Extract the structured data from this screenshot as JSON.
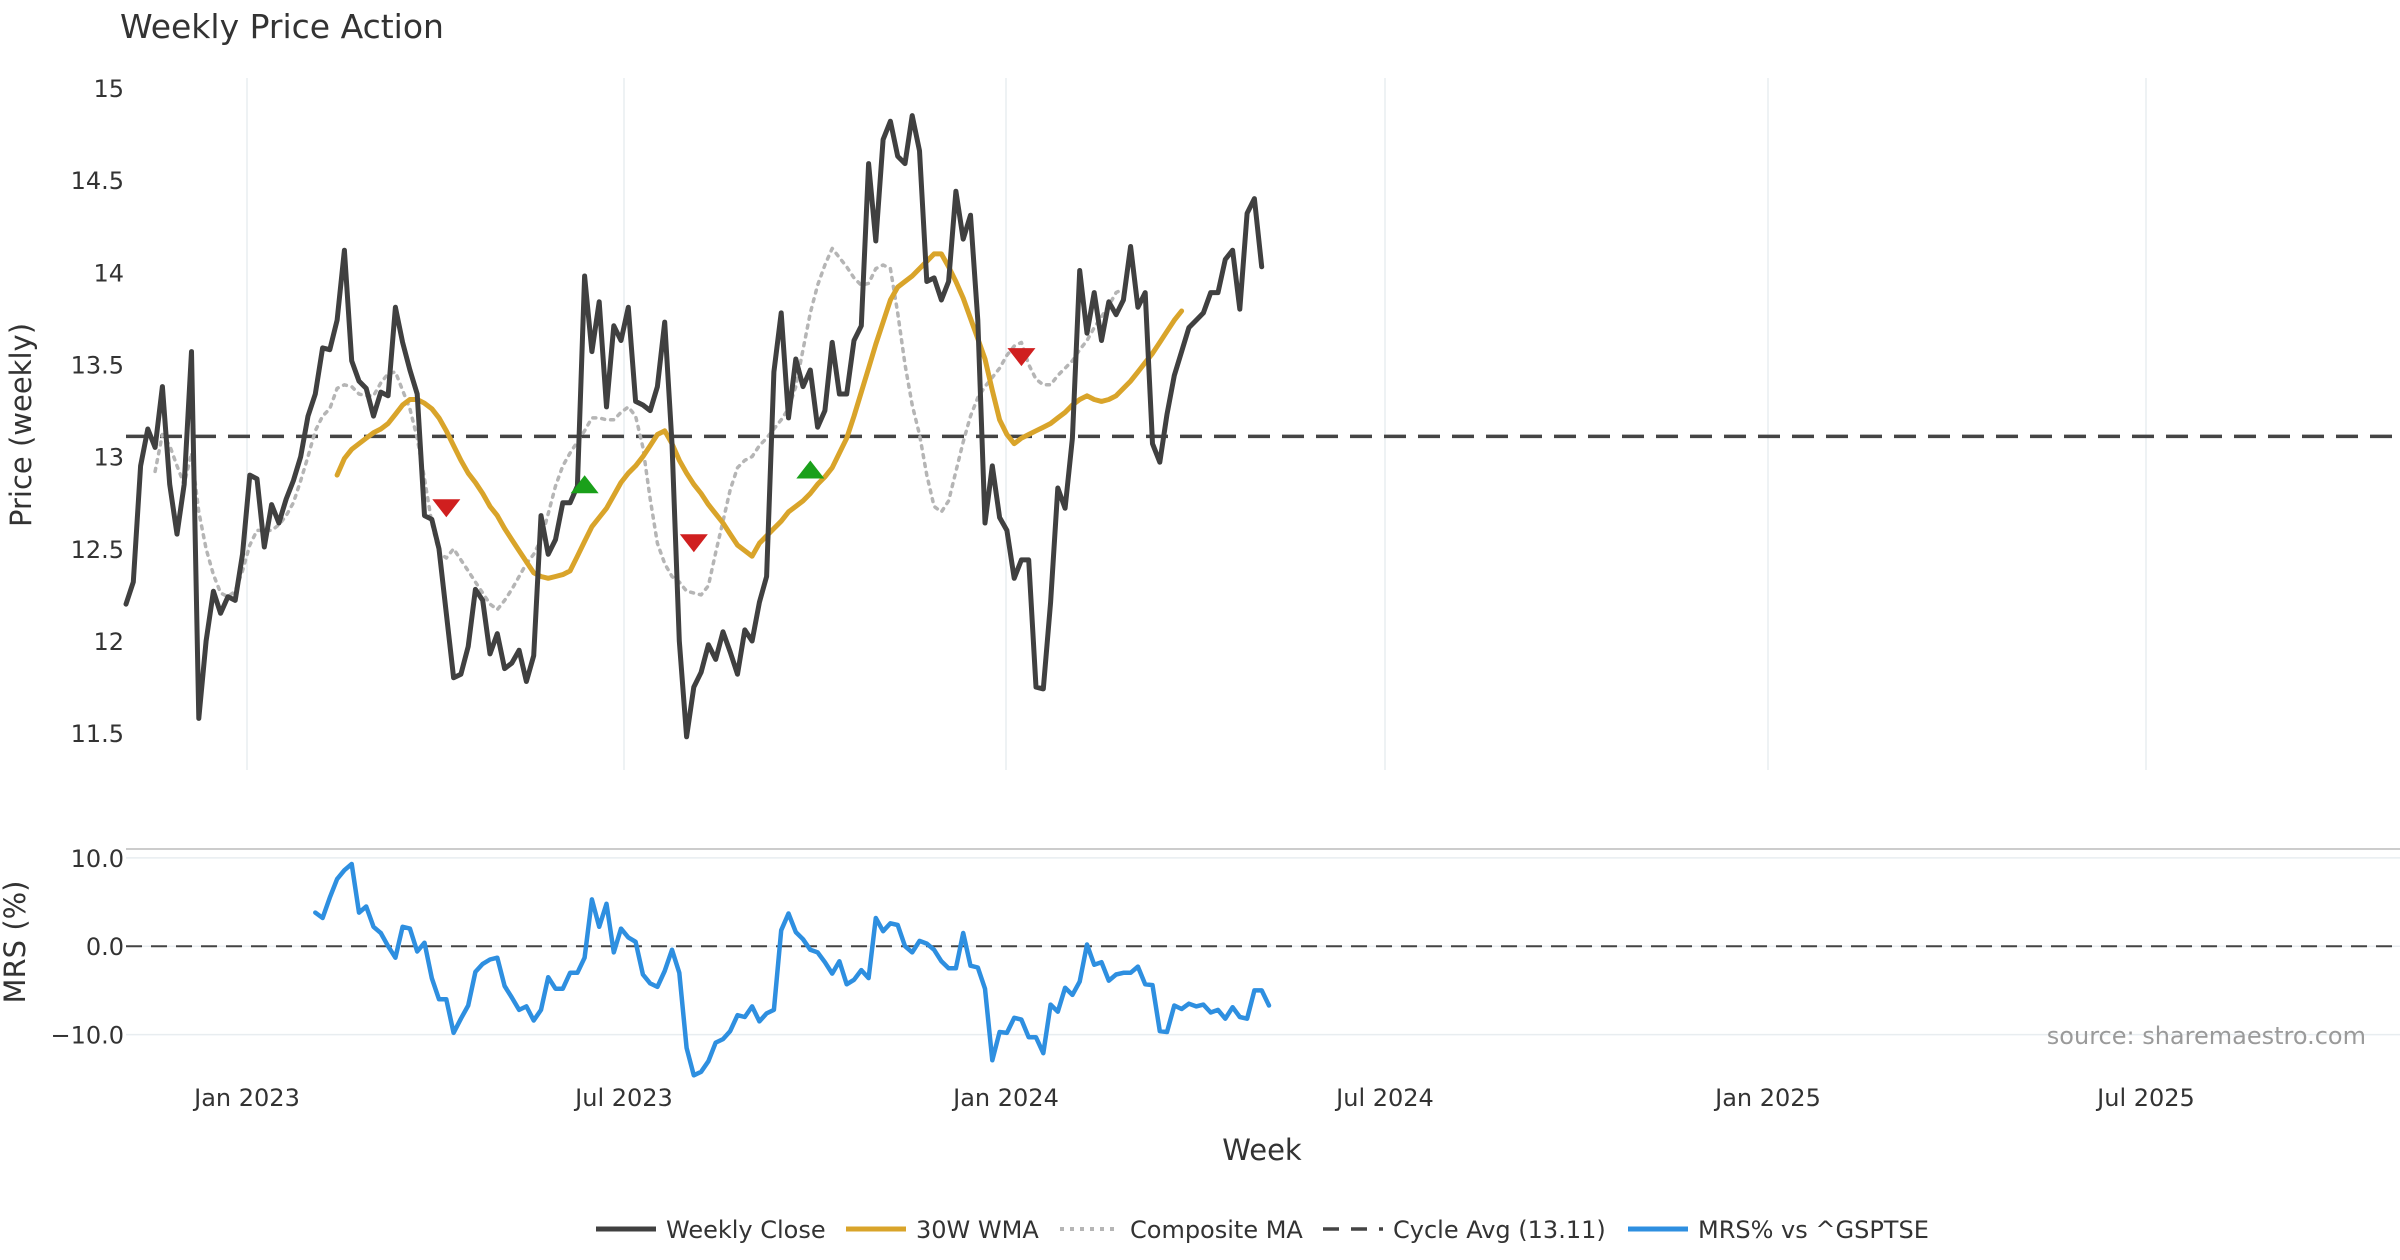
{
  "chart_data": {
    "type": "line",
    "title": "Weekly Price Action",
    "xlabel": "Week",
    "x_tick_labels": [
      "Jan 2023",
      "Jul 2023",
      "Jan 2024",
      "Jul 2024",
      "Jan 2025",
      "Jul 2025"
    ],
    "panels": [
      {
        "id": "price",
        "ylabel": "Price (weekly)",
        "ylim": [
          11.3,
          15.0
        ],
        "y_ticks": [
          11.5,
          12,
          12.5,
          13,
          13.5,
          14,
          14.5,
          15
        ],
        "y_tick_labels": [
          "11.5",
          "12",
          "12.5",
          "13",
          "13.5",
          "14",
          "14.5",
          "15"
        ],
        "grid": "x",
        "reference_line": {
          "name": "Cycle Avg (13.11)",
          "value": 13.11
        },
        "series": [
          {
            "name": "Weekly Close",
            "color": "#404040",
            "style": "solid",
            "start_week": 0,
            "values": [
              12.2,
              12.32,
              12.95,
              13.15,
              13.05,
              13.38,
              12.85,
              12.58,
              12.85,
              13.57,
              11.58,
              12.0,
              12.27,
              12.15,
              12.24,
              12.22,
              12.47,
              12.9,
              12.88,
              12.51,
              12.74,
              12.64,
              12.77,
              12.87,
              13.0,
              13.22,
              13.34,
              13.59,
              13.58,
              13.74,
              14.12,
              13.52,
              13.41,
              13.37,
              13.22,
              13.35,
              13.33,
              13.81,
              13.62,
              13.47,
              13.34,
              12.68,
              12.66,
              12.5,
              12.15,
              11.8,
              11.82,
              11.97,
              12.28,
              12.22,
              11.93,
              12.04,
              11.85,
              11.88,
              11.95,
              11.78,
              11.92,
              12.68,
              12.47,
              12.55,
              12.75,
              12.75,
              12.84,
              13.98,
              13.57,
              13.84,
              13.27,
              13.71,
              13.63,
              13.81,
              13.3,
              13.28,
              13.25,
              13.38,
              13.73,
              13.07,
              12.0,
              11.48,
              11.75,
              11.83,
              11.98,
              11.9,
              12.05,
              11.94,
              11.82,
              12.06,
              12.0,
              12.21,
              12.35,
              13.46,
              13.78,
              13.21,
              13.53,
              13.38,
              13.47,
              13.16,
              13.25,
              13.62,
              13.34,
              13.34,
              13.63,
              13.71,
              14.59,
              14.17,
              14.72,
              14.82,
              14.63,
              14.59,
              14.85,
              14.66,
              13.95,
              13.97,
              13.85,
              13.95,
              14.44,
              14.18,
              14.31,
              13.74,
              12.64,
              12.95,
              12.67,
              12.6,
              12.34,
              12.44,
              12.44,
              11.75,
              11.74,
              12.21,
              12.83,
              12.72,
              13.1,
              14.01,
              13.67,
              13.89,
              13.63,
              13.84,
              13.77,
              13.85,
              14.14,
              13.81,
              13.89,
              13.07,
              12.97,
              13.23,
              13.44,
              13.57,
              13.7,
              13.74,
              13.78,
              13.89,
              13.89,
              14.07,
              14.12,
              13.8,
              14.32,
              14.4,
              14.03
            ]
          },
          {
            "name": "30W WMA",
            "color": "#d9a42a",
            "style": "solid",
            "start_week": 29,
            "values": [
              12.9,
              12.99,
              13.04,
              13.07,
              13.1,
              13.13,
              13.15,
              13.18,
              13.23,
              13.28,
              13.31,
              13.31,
              13.29,
              13.26,
              13.21,
              13.14,
              13.06,
              12.98,
              12.91,
              12.86,
              12.8,
              12.73,
              12.68,
              12.61,
              12.55,
              12.49,
              12.43,
              12.37,
              12.35,
              12.34,
              12.35,
              12.36,
              12.38,
              12.46,
              12.54,
              12.62,
              12.67,
              12.72,
              12.79,
              12.86,
              12.91,
              12.95,
              13.0,
              13.06,
              13.12,
              13.14,
              13.07,
              12.98,
              12.91,
              12.85,
              12.8,
              12.74,
              12.69,
              12.64,
              12.58,
              12.52,
              12.49,
              12.46,
              12.53,
              12.57,
              12.61,
              12.65,
              12.7,
              12.73,
              12.76,
              12.8,
              12.85,
              12.89,
              12.94,
              13.02,
              13.1,
              13.22,
              13.35,
              13.48,
              13.61,
              13.73,
              13.85,
              13.92,
              13.95,
              13.98,
              14.02,
              14.06,
              14.1,
              14.1,
              14.03,
              13.95,
              13.86,
              13.75,
              13.64,
              13.53,
              13.36,
              13.2,
              13.12,
              13.07,
              13.1,
              13.12,
              13.14,
              13.16,
              13.18,
              13.21,
              13.24,
              13.28,
              13.31,
              13.33,
              13.31,
              13.3,
              13.31,
              13.33,
              13.37,
              13.41,
              13.46,
              13.51,
              13.56,
              13.62,
              13.68,
              13.74,
              13.79
            ]
          },
          {
            "name": "Composite MA",
            "color": "#b5b5b5",
            "style": "dotted",
            "start_week": 4,
            "values": [
              12.92,
              13.12,
              13.06,
              12.95,
              12.85,
              13.02,
              12.7,
              12.5,
              12.36,
              12.26,
              12.24,
              12.27,
              12.38,
              12.52,
              12.6,
              12.6,
              12.6,
              12.63,
              12.68,
              12.75,
              12.87,
              13.0,
              13.14,
              13.22,
              13.26,
              13.37,
              13.39,
              13.38,
              13.34,
              13.33,
              13.33,
              13.4,
              13.45,
              13.46,
              13.36,
              13.26,
              13.1,
              12.88,
              12.64,
              12.48,
              12.45,
              12.5,
              12.44,
              12.38,
              12.32,
              12.26,
              12.2,
              12.17,
              12.22,
              12.28,
              12.35,
              12.42,
              12.47,
              12.55,
              12.69,
              12.84,
              12.95,
              13.02,
              13.08,
              13.14,
              13.21,
              13.21,
              13.2,
              13.2,
              13.24,
              13.27,
              13.22,
              13.05,
              12.77,
              12.53,
              12.42,
              12.35,
              12.32,
              12.27,
              12.26,
              12.25,
              12.3,
              12.48,
              12.65,
              12.82,
              12.94,
              12.98,
              13.0,
              13.06,
              13.1,
              13.15,
              13.2,
              13.26,
              13.38,
              13.58,
              13.78,
              13.93,
              14.04,
              14.13,
              14.08,
              14.03,
              13.97,
              13.93,
              13.94,
              14.02,
              14.04,
              14.02,
              13.78,
              13.5,
              13.28,
              13.12,
              12.9,
              12.73,
              12.7,
              12.76,
              12.92,
              13.08,
              13.22,
              13.32,
              13.38,
              13.43,
              13.48,
              13.55,
              13.6,
              13.62,
              13.5,
              13.42,
              13.39,
              13.39,
              13.44,
              13.48,
              13.52,
              13.58,
              13.63,
              13.7,
              13.76,
              13.82,
              13.89,
              13.91
            ]
          }
        ],
        "signals": [
          {
            "type": "sell",
            "week": 44,
            "value": 12.72
          },
          {
            "type": "buy",
            "week": 63,
            "value": 12.85
          },
          {
            "type": "sell",
            "week": 78,
            "value": 12.53
          },
          {
            "type": "buy",
            "week": 94,
            "value": 12.93
          },
          {
            "type": "sell",
            "week": 123,
            "value": 13.54
          }
        ]
      },
      {
        "id": "mrs",
        "ylabel": "MRS (%)",
        "ylim": [
          -14.0,
          11.0
        ],
        "y_ticks": [
          10,
          0,
          -10
        ],
        "y_tick_labels": [
          "10.0",
          "0.0",
          "−10.0"
        ],
        "grid": "y",
        "reference_line": {
          "value": 0
        },
        "series": [
          {
            "name": "MRS% vs ^GSPTSE",
            "color": "#2e8fe0",
            "style": "solid",
            "start_week": 26,
            "values": [
              3.8,
              3.2,
              5.5,
              7.6,
              8.6,
              9.3,
              3.8,
              4.5,
              2.2,
              1.5,
              0.0,
              -1.3,
              2.2,
              2.0,
              -0.6,
              0.4,
              -3.6,
              -6.0,
              -6.0,
              -9.8,
              -8.2,
              -6.7,
              -2.9,
              -2.0,
              -1.5,
              -1.3,
              -4.5,
              -5.8,
              -7.2,
              -6.8,
              -8.4,
              -7.2,
              -3.5,
              -4.8,
              -4.8,
              -3.0,
              -3.0,
              -1.3,
              5.3,
              2.2,
              4.8,
              -0.7,
              2.0,
              1.0,
              0.5,
              -3.2,
              -4.2,
              -4.6,
              -2.8,
              -0.4,
              -3.0,
              -11.5,
              -14.6,
              -14.2,
              -13.0,
              -10.9,
              -10.5,
              -9.6,
              -7.8,
              -8.0,
              -6.8,
              -8.5,
              -7.6,
              -7.2,
              1.8,
              3.7,
              1.6,
              0.8,
              -0.4,
              -0.7,
              -1.8,
              -3.1,
              -1.7,
              -4.3,
              -3.8,
              -2.7,
              -3.6,
              3.2,
              1.7,
              2.6,
              2.4,
              0.0,
              -0.7,
              0.6,
              0.3,
              -0.4,
              -1.7,
              -2.5,
              -2.5,
              1.5,
              -2.2,
              -2.4,
              -4.8,
              -12.9,
              -9.7,
              -9.8,
              -8.1,
              -8.3,
              -10.3,
              -10.3,
              -12.1,
              -6.6,
              -7.4,
              -4.7,
              -5.5,
              -4.0,
              0.2,
              -2.1,
              -1.8,
              -3.9,
              -3.2,
              -3.0,
              -3.0,
              -2.3,
              -4.3,
              -4.4,
              -9.6,
              -9.7,
              -6.7,
              -7.1,
              -6.5,
              -6.8,
              -6.6,
              -7.5,
              -7.2,
              -8.2,
              -6.9,
              -8.0,
              -8.2,
              -5.0,
              -5.0,
              -6.7
            ]
          }
        ]
      }
    ],
    "annotations": [
      "source: sharemaestro.com"
    ],
    "legend": {
      "placement": "bottom-center",
      "entries": [
        "Weekly Close",
        "30W WMA",
        "Composite MA",
        "Cycle Avg (13.11)",
        "MRS% vs ^GSPTSE"
      ]
    }
  }
}
